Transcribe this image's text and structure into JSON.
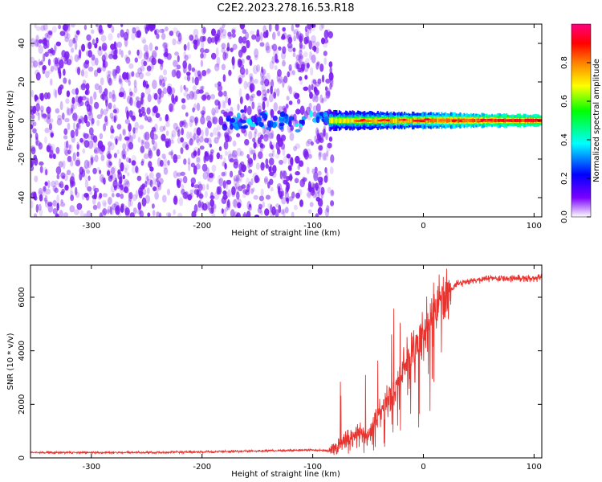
{
  "figure": {
    "title": "C2E2.2023.278.16.53.R18"
  },
  "colors": {
    "snr_line": "#e8332f",
    "axis": "#000000",
    "background": "#ffffff",
    "spectrogram_noise": "#7a1cf0",
    "colormap": [
      "#ffffff",
      "#7a00ff",
      "#0000ff",
      "#00ffff",
      "#00ff00",
      "#ffff00",
      "#ff8000",
      "#ff0000",
      "#ff0080"
    ]
  },
  "chart_data": [
    {
      "type": "heatmap",
      "xlabel": "Height of straight line (km)",
      "ylabel": "Frequency (Hz)",
      "xlim": [
        -355,
        107
      ],
      "ylim": [
        -50,
        50
      ],
      "xticks": [
        -300,
        -200,
        -100,
        0,
        100
      ],
      "yticks": [
        -40,
        -20,
        0,
        20,
        40
      ],
      "colorbar": {
        "label": "Normalized spectral amplitude",
        "range": [
          0,
          1
        ],
        "ticks": [
          0.0,
          0.2,
          0.4,
          0.6,
          0.8
        ]
      },
      "features": {
        "noise_region_x": [
          -355,
          -82
        ],
        "signal_start_x": -85,
        "signal_center_hz": 0,
        "signal_halfwidth_hz": 3
      }
    },
    {
      "type": "line",
      "xlabel": "Height of straight line (km)",
      "ylabel": "SNR (10 * v/v)",
      "xlim": [
        -355,
        107
      ],
      "ylim": [
        0,
        7200
      ],
      "xticks": [
        -300,
        -200,
        -100,
        0,
        100
      ],
      "yticks": [
        0,
        2000,
        4000,
        6000
      ],
      "series": [
        {
          "x": [
            -355,
            -300,
            -250,
            -200,
            -150,
            -120,
            -100,
            -85,
            -75,
            -65,
            -60,
            -55,
            -50,
            -45,
            -40,
            -35,
            -30,
            -25,
            -20,
            -15,
            -10,
            -5,
            0,
            5,
            10,
            15,
            20,
            25,
            30,
            40,
            50,
            60,
            70,
            80,
            90,
            100,
            107
          ],
          "y": [
            200,
            200,
            200,
            220,
            260,
            280,
            300,
            250,
            500,
            800,
            1000,
            900,
            800,
            1300,
            1600,
            2000,
            2400,
            2700,
            3100,
            3500,
            3900,
            4300,
            4600,
            5000,
            5400,
            5800,
            6100,
            6300,
            6500,
            6600,
            6650,
            6700,
            6700,
            6700,
            6700,
            6720,
            6750
          ]
        }
      ]
    }
  ]
}
